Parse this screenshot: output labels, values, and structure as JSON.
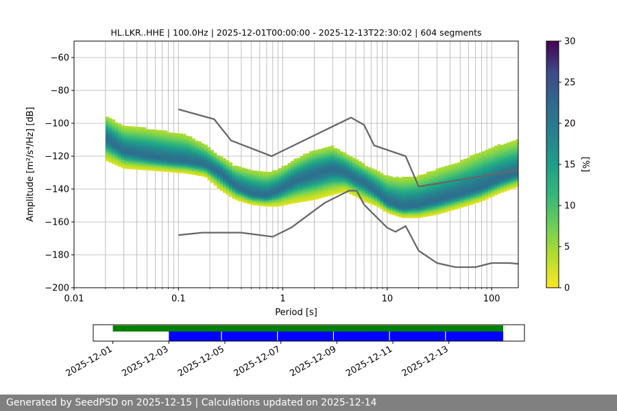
{
  "chart_data": {
    "type": "heatmap",
    "title": "HL.LKR..HHE | 100.0Hz | 2025-12-01T00:00:00 - 2025-12-13T22:30:02 | 604 segments",
    "xlabel": "Period [s]",
    "ylabel": "Amplitude [m²/s⁴/Hz] [dB]",
    "x_scale": "log",
    "xlim": [
      0.01,
      180
    ],
    "ylim": [
      -200,
      -50
    ],
    "x_ticks": [
      0.01,
      0.1,
      1,
      10,
      100
    ],
    "x_tick_labels": [
      "0.01",
      "0.1",
      "1",
      "10",
      "100"
    ],
    "y_ticks": [
      -200,
      -180,
      -160,
      -140,
      -120,
      -100,
      -80,
      -60
    ],
    "y_tick_labels": [
      "−200",
      "−180",
      "−160",
      "−140",
      "−120",
      "−100",
      "−80",
      "−60"
    ],
    "grid": true,
    "colorbar": {
      "label": "[%]",
      "range": [
        0,
        30
      ],
      "ticks": [
        0,
        5,
        10,
        15,
        20,
        25,
        30
      ]
    },
    "psd_mode": {
      "x": [
        0.02,
        0.03,
        0.05,
        0.08,
        0.12,
        0.18,
        0.25,
        0.35,
        0.5,
        0.7,
        0.9,
        1.3,
        2,
        3,
        4,
        5,
        6,
        8,
        10,
        14,
        20,
        30,
        50,
        80,
        120,
        180
      ],
      "y": [
        -109,
        -117,
        -120,
        -122,
        -123,
        -125,
        -130,
        -138,
        -143,
        -144,
        -141,
        -135,
        -131,
        -128,
        -130,
        -134,
        -136,
        -142,
        -148,
        -151,
        -150,
        -147,
        -143,
        -139,
        -134,
        -130
      ]
    },
    "psd_spread": {
      "x": [
        0.02,
        0.03,
        0.05,
        0.08,
        0.12,
        0.18,
        0.25,
        0.35,
        0.5,
        0.7,
        0.9,
        1.3,
        2,
        3,
        4,
        5,
        6,
        8,
        10,
        14,
        20,
        30,
        50,
        80,
        120,
        180
      ],
      "upper": [
        -95,
        -102,
        -103,
        -105,
        -107,
        -113,
        -120,
        -126,
        -128,
        -130,
        -128,
        -122,
        -116,
        -114,
        -118,
        -122,
        -125,
        -129,
        -132,
        -133,
        -132,
        -128,
        -123,
        -117,
        -113,
        -110
      ],
      "lower": [
        -122,
        -127,
        -128,
        -129,
        -130,
        -132,
        -140,
        -146,
        -149,
        -150,
        -150,
        -148,
        -146,
        -143,
        -141,
        -144,
        -147,
        -150,
        -154,
        -157,
        -157,
        -155,
        -151,
        -147,
        -142,
        -138
      ]
    },
    "series": [
      {
        "x": [
          0.1,
          0.22,
          0.32,
          0.78,
          4.5,
          6,
          7.5,
          15,
          20,
          180
        ],
        "y": [
          -91.5,
          -97.5,
          -110.5,
          -120,
          -96.5,
          -101,
          -113.5,
          -120,
          -138.5,
          -128.5
        ]
      },
      {
        "x": [
          0.1,
          0.17,
          0.4,
          0.8,
          1.2,
          2.5,
          4.3,
          5.1,
          6,
          10,
          12,
          15,
          20,
          30,
          45,
          70,
          100,
          150,
          180
        ],
        "y": [
          -168,
          -166.5,
          -166.5,
          -169,
          -163.5,
          -148.5,
          -141,
          -141,
          -149.5,
          -163.5,
          -166,
          -162.5,
          -177.5,
          -185,
          -187.5,
          -187.5,
          -185,
          -185,
          -185.5
        ]
      }
    ],
    "timeline": {
      "tick_labels": [
        "2025-12-01",
        "2025-12-03",
        "2025-12-05",
        "2025-12-07",
        "2025-12-09",
        "2025-12-11",
        "2025-12-13"
      ],
      "data_available": {
        "color": "#008000",
        "start_day": 0,
        "end_day": 13.94
      },
      "psd_computed": {
        "color": "#0000ff",
        "start_day": 2,
        "end_day": 13.94,
        "gaps": [
          3.88,
          5.88,
          7.88,
          9.88,
          11.88
        ]
      }
    }
  },
  "footer": {
    "text": "Generated by SeedPSD on 2025-12-15 | Calculations updated on 2025-12-14"
  }
}
